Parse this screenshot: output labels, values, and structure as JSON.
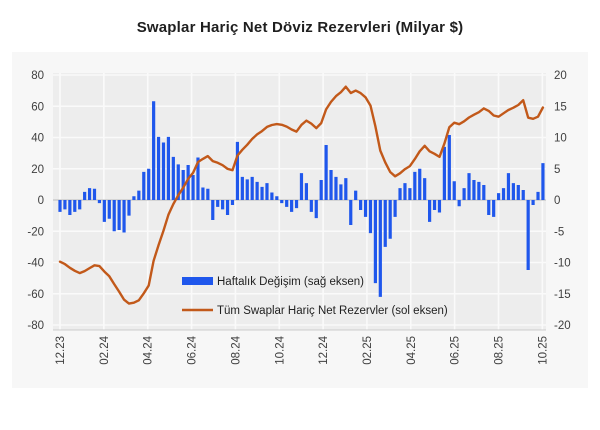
{
  "title": "Swaplar Hariç Net Döviz Rezervleri (Milyar $)",
  "chart_data": {
    "type": "combo-bar-line",
    "x_unit": "week",
    "x_tick_labels": [
      "12.23",
      "02.24",
      "04.24",
      "06.24",
      "08.24",
      "10.24",
      "12.24",
      "02.25",
      "04.25",
      "06.25",
      "08.25",
      "10.25"
    ],
    "left_axis": {
      "label": "sol eksen",
      "min": -80,
      "max": 80,
      "step": 20,
      "tick_values": [
        80,
        60,
        40,
        20,
        0,
        -20,
        -40,
        -60,
        -80
      ],
      "tick_labels": [
        "80",
        "60",
        "40",
        "20",
        "0",
        "-20",
        "-40",
        "-60",
        "-80"
      ]
    },
    "right_axis": {
      "label": "sağ eksen",
      "min": -20,
      "max": 20,
      "step": 5,
      "tick_values": [
        20,
        15,
        10,
        5,
        0,
        -5,
        -10,
        -15,
        -20
      ],
      "tick_labels": [
        "20",
        "15",
        "10",
        "5",
        "0",
        "-5",
        "-10",
        "-15",
        "-20"
      ]
    },
    "grid": true,
    "legend_position": "inside-bottom-center",
    "series": [
      {
        "name": "Haftalık Değişim (sağ eksen)",
        "type": "bar",
        "axis": "right",
        "color": "#1f57ec",
        "values": [
          -1.9,
          -1.5,
          -2.4,
          -1.9,
          -1.5,
          1.3,
          1.9,
          1.8,
          -0.5,
          -3.5,
          -3.0,
          -5.0,
          -4.8,
          -5.2,
          -2.5,
          0.6,
          1.5,
          4.5,
          5.0,
          15.8,
          10.1,
          9.2,
          10.1,
          6.9,
          5.7,
          4.8,
          5.6,
          4.0,
          6.8,
          2.0,
          1.8,
          -3.2,
          -1.1,
          -1.5,
          -2.4,
          -0.8,
          9.3,
          3.7,
          3.3,
          3.7,
          2.9,
          2.1,
          2.7,
          1.2,
          0.6,
          -0.5,
          -1.1,
          -1.9,
          -1.3,
          4.3,
          2.7,
          -1.9,
          -2.9,
          3.2,
          8.8,
          4.8,
          3.7,
          2.5,
          3.5,
          -4.0,
          1.5,
          -1.6,
          -2.7,
          -5.3,
          -13.3,
          -15.5,
          -7.5,
          -6.2,
          -2.7,
          1.9,
          2.7,
          1.9,
          4.5,
          5.0,
          3.5,
          -3.5,
          -1.6,
          -2.0,
          8.5,
          10.4,
          3.0,
          -1.0,
          1.9,
          4.3,
          3.2,
          2.9,
          2.4,
          -2.4,
          -2.7,
          1.1,
          1.9,
          4.3,
          2.7,
          2.4,
          1.6,
          -11.2,
          -0.8,
          1.3,
          5.9
        ]
      },
      {
        "name": "Tüm Swaplar Hariç Net Rezervler (sol eksen)",
        "type": "line",
        "axis": "left",
        "color": "#c2591a",
        "values": [
          -39.5,
          -41.0,
          -43.4,
          -45.3,
          -46.8,
          -45.5,
          -43.6,
          -41.8,
          -42.3,
          -45.8,
          -48.8,
          -53.8,
          -58.6,
          -63.8,
          -66.3,
          -65.7,
          -64.2,
          -59.7,
          -54.7,
          -38.9,
          -28.8,
          -19.6,
          -9.5,
          -2.6,
          3.1,
          7.9,
          13.5,
          17.5,
          24.3,
          26.3,
          28.1,
          24.9,
          23.8,
          22.3,
          19.9,
          19.1,
          28.4,
          32.1,
          35.4,
          39.1,
          42.0,
          44.1,
          46.8,
          48.0,
          48.6,
          48.1,
          47.0,
          45.1,
          43.8,
          48.1,
          50.8,
          48.9,
          46.0,
          49.2,
          58.0,
          62.8,
          66.5,
          69.0,
          72.5,
          68.5,
          70.0,
          68.4,
          65.7,
          60.4,
          47.1,
          31.6,
          24.1,
          17.9,
          15.2,
          17.1,
          19.8,
          21.7,
          26.2,
          31.2,
          34.7,
          31.2,
          29.6,
          27.6,
          36.1,
          46.5,
          49.5,
          48.5,
          50.4,
          52.8,
          54.6,
          56.2,
          58.6,
          57.0,
          54.1,
          53.3,
          55.5,
          57.6,
          59.1,
          60.8,
          63.9,
          52.7,
          52.0,
          53.3,
          59.2
        ]
      }
    ],
    "colors": {
      "widget_bg": "#f7f7f7",
      "plot_bg": "#ededed",
      "gridline": "#fafafa",
      "zero_line": "#b5b5b5",
      "plot_bottom_edge": "#cccccc",
      "axis_text": "#404040",
      "legend_text": "#1f1f1f",
      "title_text": "#1f1f1f"
    }
  }
}
